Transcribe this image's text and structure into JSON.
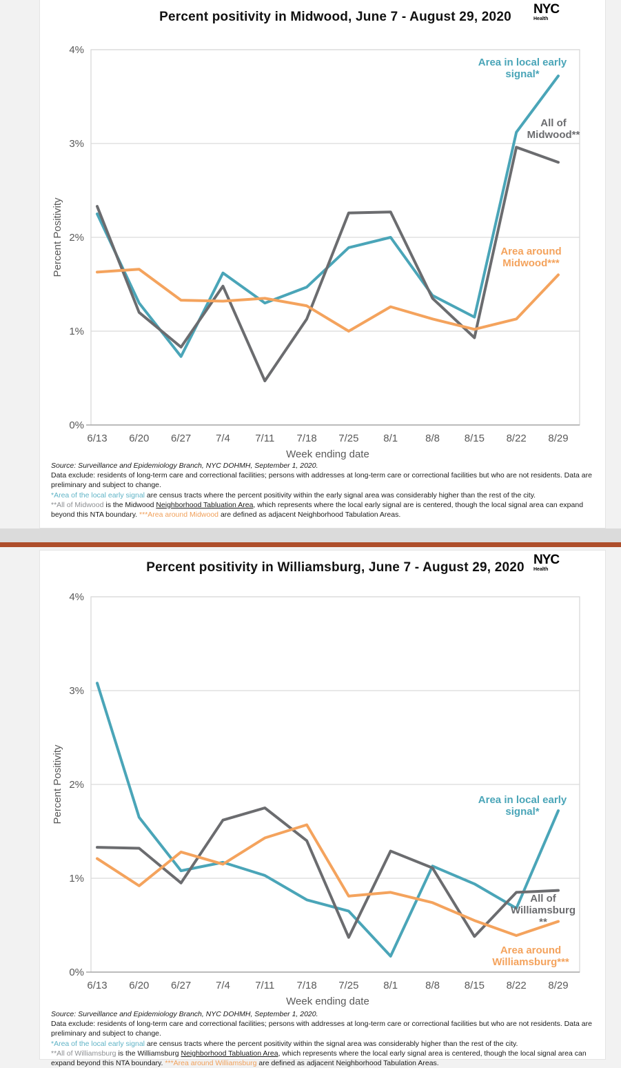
{
  "colors": {
    "signal": "#4aa5b8",
    "all": "#6b6c6f",
    "around": "#f4a35d",
    "grid": "#d9d9d9",
    "axis": "#a8a8a8",
    "tick_text": "#595959",
    "divider_band": "#dbdbdb",
    "divider_bar": "#ae4e2b"
  },
  "chart_data": [
    {
      "type": "line",
      "title": "Percent positivity in Midwood, June 7 - August 29, 2020",
      "xlabel": "Week ending date",
      "ylabel": "Percent Positivity",
      "x": [
        "6/13",
        "6/20",
        "6/27",
        "7/4",
        "7/11",
        "7/18",
        "7/25",
        "8/1",
        "8/8",
        "8/15",
        "8/22",
        "8/29"
      ],
      "ylim": [
        0,
        4
      ],
      "yticks": [
        0,
        1,
        2,
        3,
        4
      ],
      "ytick_labels": [
        "0%",
        "1%",
        "2%",
        "3%",
        "4%"
      ],
      "grid": true,
      "legend_position": "annotated-on-plot",
      "series": [
        {
          "name": "Area in local early signal*",
          "color": "#4aa5b8",
          "values": [
            2.25,
            1.3,
            0.73,
            1.62,
            1.3,
            1.47,
            1.89,
            2.0,
            1.38,
            1.15,
            3.12,
            3.72
          ]
        },
        {
          "name": "All of Midwood**",
          "color": "#6b6c6f",
          "values": [
            2.33,
            1.2,
            0.83,
            1.48,
            0.47,
            1.13,
            2.26,
            2.27,
            1.35,
            0.93,
            2.96,
            2.8
          ]
        },
        {
          "name": "Area around Midwood***",
          "color": "#f4a35d",
          "values": [
            1.63,
            1.66,
            1.33,
            1.32,
            1.35,
            1.27,
            1.0,
            1.26,
            1.13,
            1.02,
            1.13,
            1.6
          ]
        }
      ]
    },
    {
      "type": "line",
      "title": "Percent positivity in Williamsburg, June 7 - August 29, 2020",
      "xlabel": "Week ending date",
      "ylabel": "Percent Positivity",
      "x": [
        "6/13",
        "6/20",
        "6/27",
        "7/4",
        "7/11",
        "7/18",
        "7/25",
        "8/1",
        "8/8",
        "8/15",
        "8/22",
        "8/29"
      ],
      "ylim": [
        0,
        4
      ],
      "yticks": [
        0,
        1,
        2,
        3,
        4
      ],
      "ytick_labels": [
        "0%",
        "1%",
        "2%",
        "3%",
        "4%"
      ],
      "grid": true,
      "legend_position": "annotated-on-plot",
      "series": [
        {
          "name": "Area in local early signal*",
          "color": "#4aa5b8",
          "values": [
            3.08,
            1.65,
            1.08,
            1.17,
            1.03,
            0.77,
            0.65,
            0.17,
            1.13,
            0.94,
            0.68,
            1.72
          ]
        },
        {
          "name": "All of Williamsburg**",
          "color": "#6b6c6f",
          "values": [
            1.33,
            1.32,
            0.95,
            1.62,
            1.75,
            1.4,
            0.37,
            1.29,
            1.11,
            0.38,
            0.85,
            0.87
          ]
        },
        {
          "name": "Area around Williamsburg***",
          "color": "#f4a35d",
          "values": [
            1.21,
            0.92,
            1.28,
            1.15,
            1.43,
            1.57,
            0.81,
            0.85,
            0.74,
            0.55,
            0.39,
            0.54
          ]
        }
      ]
    }
  ],
  "charts": [
    {
      "logo": {
        "line1": "NYC",
        "line2": "Health"
      },
      "legends": {
        "signal": {
          "line1": "Area in local early",
          "line2": "signal*"
        },
        "all": {
          "line1": "All of",
          "line2": "Midwood**"
        },
        "around": {
          "line1": "Area around",
          "line2": "Midwood***"
        }
      },
      "footnotes": {
        "source": "Source: Surveillance and Epidemiology Branch, NYC DOHMH, September 1, 2020.",
        "exclude": "Data exclude: residents of long-term care and correctional facilities; persons with addresses at long-term care or correctional facilities but who are not residents. Data are preliminary and subject to change.",
        "signal_label": "*Area of the local early signal",
        "signal_rest": " are census tracts where the percent positivity within the early signal area was considerably higher than the rest of the city.",
        "all_label": "**All of Midwood",
        "all_mid1": " is the Midwood ",
        "all_link": "Neighborhood Tabluation Area",
        "all_mid2": ", which represents where the local early signal are is centered, though the local signal area can expand beyond this NTA boundary. ",
        "around_label": "***Area around Midwood",
        "around_rest": " are defined as adjacent Neighborhood Tabulation Areas."
      }
    },
    {
      "logo": {
        "line1": "NYC",
        "line2": "Health"
      },
      "legends": {
        "signal": {
          "line1": "Area in local early",
          "line2": "signal*"
        },
        "all": {
          "line1": "All of",
          "line2": "Williamsburg",
          "line3": "**"
        },
        "around": {
          "line1": "Area around",
          "line2": "Williamsburg***"
        }
      },
      "footnotes": {
        "source": "Source: Surveillance and Epidemiology Branch, NYC DOHMH, September 1, 2020.",
        "exclude": "Data exclude: residents of long-term care and correctional facilities; persons with addresses at long-term care or correctional facilities but who are not residents. Data are preliminary and subject to change.",
        "signal_label": "*Area of the local early signal",
        "signal_rest": " are census tracts where the percent positivity within the signal area was considerably higher than the rest of the city.",
        "all_label": "**All of Williamsburg",
        "all_mid1": " is the Williamsburg ",
        "all_link": "Neighborhood Tabluation Area",
        "all_mid2": ", which represents where the local early signal area is centered, though the local signal area can expand beyond this NTA boundary. ",
        "around_label": "***Area around Williamsburg",
        "around_rest": " are defined as adjacent Neighborhood Tabulation Areas."
      }
    }
  ]
}
